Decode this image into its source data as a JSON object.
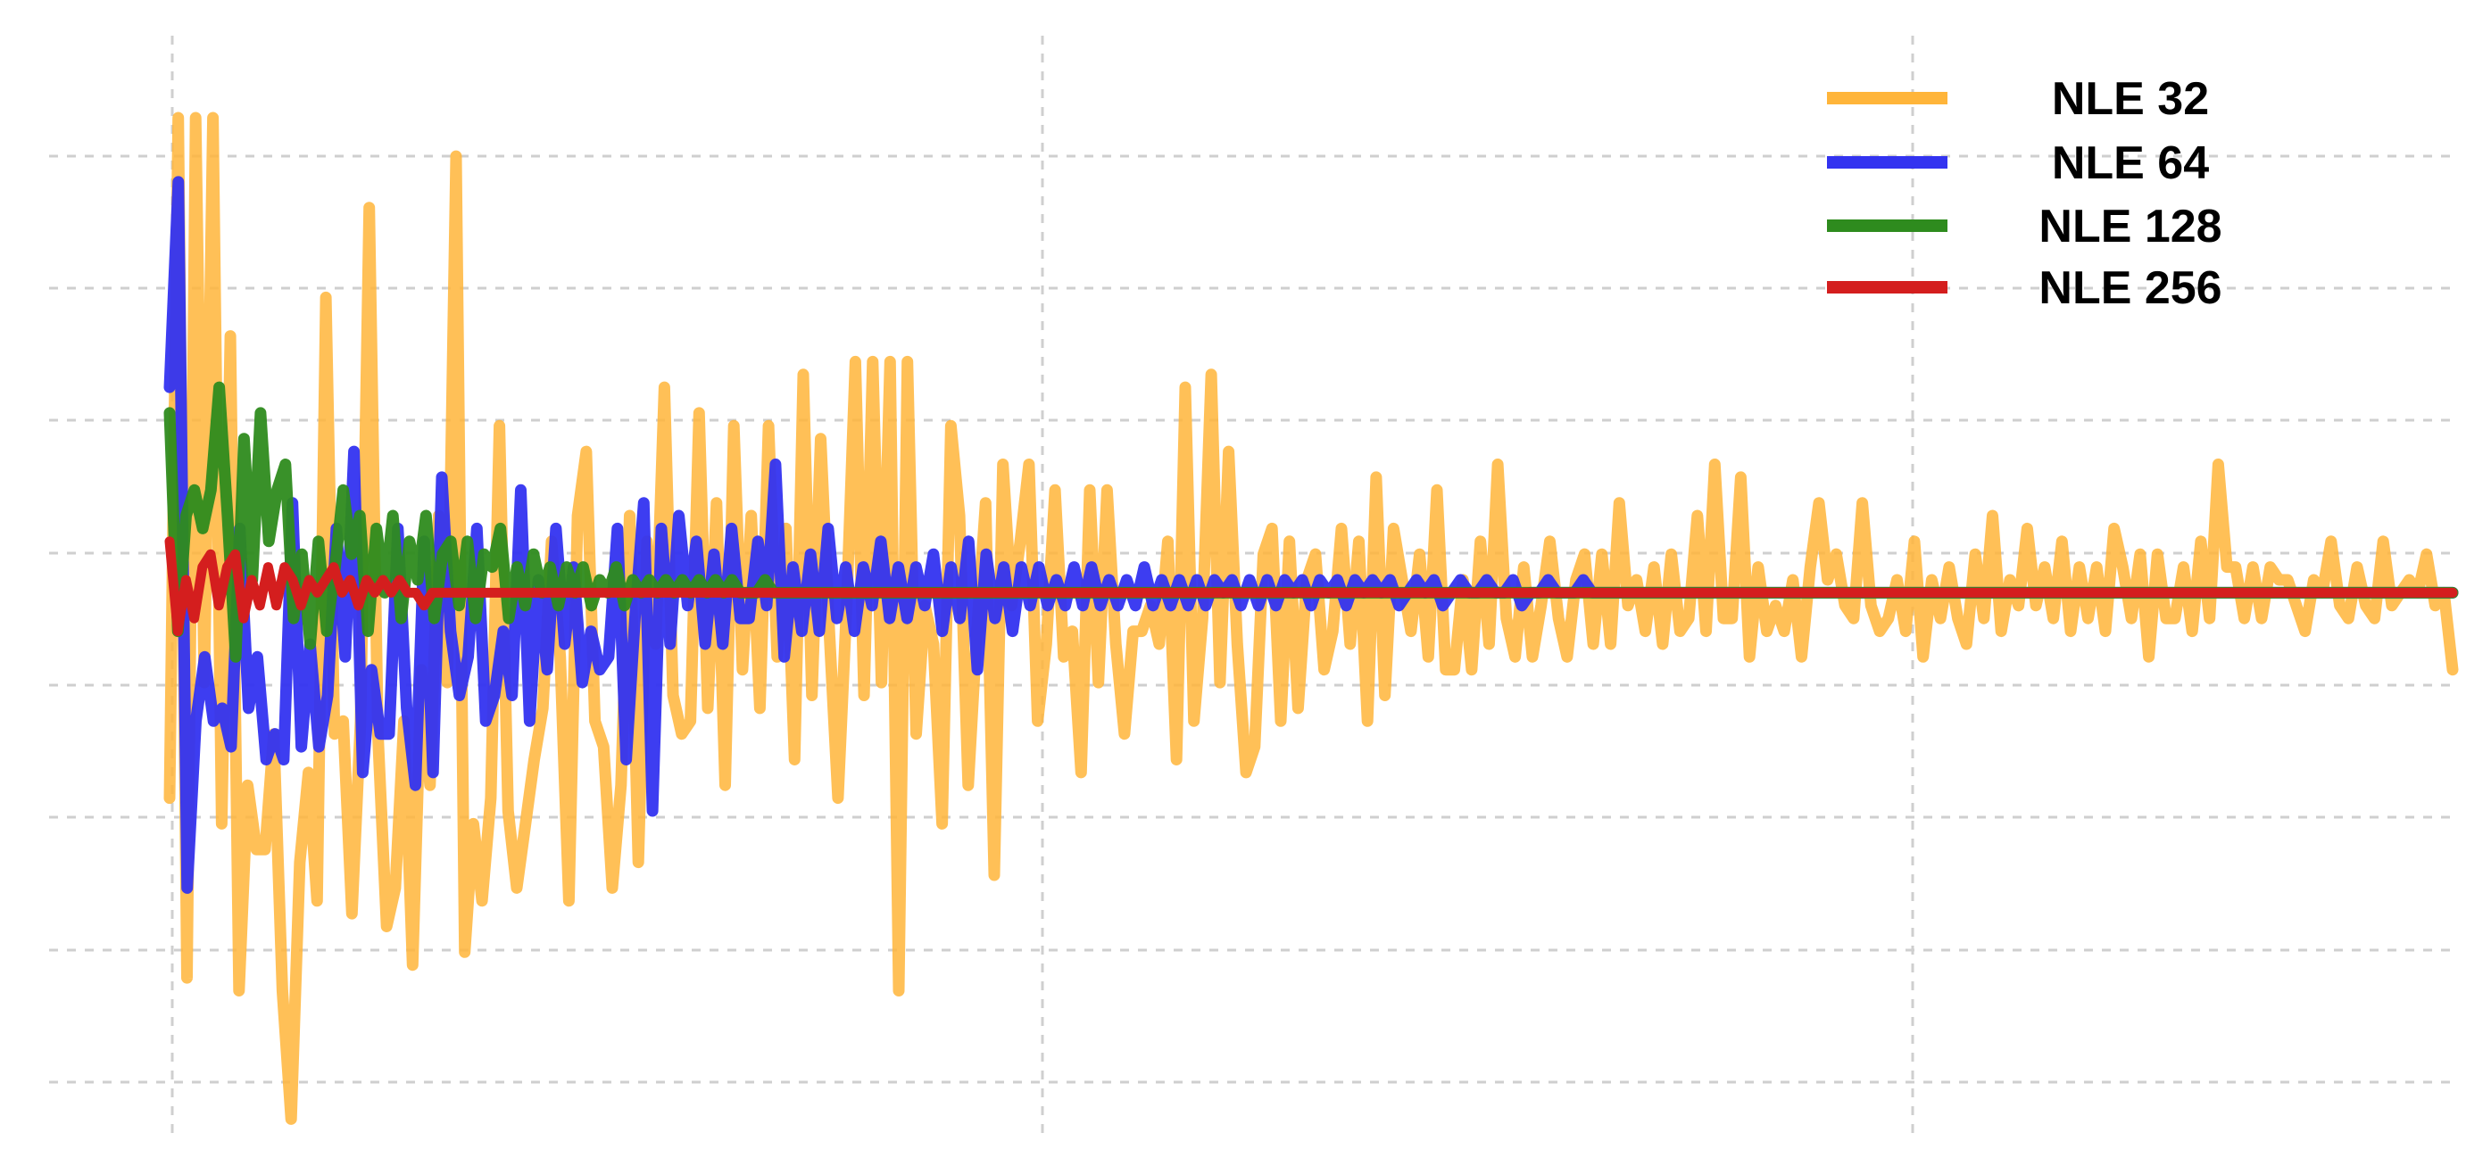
{
  "chart_data": {
    "type": "line",
    "title": "",
    "xlabel": "",
    "ylabel": "",
    "xlim": [
      0,
      262
    ],
    "ylim": [
      -4,
      4.2
    ],
    "grid": true,
    "legend_position": "top-right",
    "series": [
      {
        "name": "NLE 32",
        "color": "#FFB53A",
        "values": [
          -1.6,
          3.7,
          -3.0,
          3.7,
          -0.7,
          3.7,
          -1.8,
          2.0,
          -3.1,
          -1.5,
          -2.0,
          -2.0,
          -1.1,
          -3.1,
          -4.1,
          -2.1,
          -1.4,
          -2.4,
          2.3,
          -1.1,
          -1.0,
          -2.5,
          -1.0,
          3.0,
          -1.1,
          -2.6,
          -2.3,
          -1.0,
          -2.9,
          -0.6,
          -1.5,
          0.6,
          -0.7,
          3.4,
          -2.8,
          -1.8,
          -2.4,
          -1.6,
          1.3,
          -1.7,
          -2.3,
          -1.8,
          -1.3,
          -0.9,
          0.4,
          -0.5,
          -2.4,
          0.6,
          1.1,
          -1.0,
          -1.2,
          -2.3,
          -1.5,
          0.6,
          -2.1,
          0.4,
          -0.4,
          1.6,
          -0.8,
          -1.1,
          -1.0,
          1.4,
          -0.9,
          0.7,
          -1.5,
          1.3,
          -0.6,
          0.6,
          -0.9,
          1.3,
          -0.5,
          0.5,
          -1.3,
          1.7,
          -0.8,
          1.2,
          -0.3,
          -1.6,
          -0.1,
          1.8,
          -0.8,
          1.8,
          -0.7,
          1.8,
          -3.1,
          1.8,
          -1.1,
          -0.1,
          -0.4,
          -1.8,
          1.3,
          0.6,
          -1.5,
          -0.3,
          0.7,
          -2.2,
          1.0,
          -0.1,
          0.4,
          1.0,
          -1.0,
          -0.4,
          0.8,
          -0.5,
          -0.3,
          -1.4,
          0.8,
          -0.7,
          0.8,
          -0.4,
          -1.1,
          -0.3,
          -0.3,
          -0.1,
          -0.4,
          0.4,
          -1.3,
          1.6,
          -1.0,
          -0.2,
          1.7,
          -0.7,
          1.1,
          -0.4,
          -1.4,
          -1.2,
          0.3,
          0.5,
          -1.0,
          0.4,
          -0.9,
          0.1,
          0.3,
          -0.6,
          -0.3,
          0.5,
          -0.4,
          0.4,
          -1.0,
          0.9,
          -0.8,
          0.5,
          0.1,
          -0.3,
          0.3,
          -0.5,
          0.8,
          -0.6,
          -0.6,
          0.1,
          -0.6,
          0.4,
          -0.4,
          1.0,
          -0.2,
          -0.5,
          0.2,
          -0.5,
          -0.1,
          0.4,
          -0.2,
          -0.5,
          0.1,
          0.3,
          -0.4,
          0.3,
          -0.4,
          0.7,
          -0.1,
          0.1,
          -0.3,
          0.2,
          -0.4,
          0.3,
          -0.3,
          -0.2,
          0.6,
          -0.3,
          1.0,
          -0.2,
          -0.2,
          0.9,
          -0.5,
          0.2,
          -0.3,
          -0.1,
          -0.3,
          0.1,
          -0.5,
          0.2,
          0.7,
          0.1,
          0.3,
          -0.1,
          -0.2,
          0.7,
          -0.1,
          -0.3,
          -0.2,
          0.1,
          -0.3,
          0.4,
          -0.5,
          0.1,
          -0.2,
          0.2,
          -0.2,
          -0.4,
          0.3,
          -0.2,
          0.6,
          -0.3,
          0.1,
          -0.1,
          0.5,
          -0.1,
          0.2,
          -0.2,
          0.4,
          -0.3,
          0.2,
          -0.2,
          0.2,
          -0.3,
          0.5,
          0.2,
          -0.2,
          0.3,
          -0.5,
          0.3,
          -0.2,
          -0.2,
          0.2,
          -0.3,
          0.4,
          -0.2,
          1.0,
          0.2,
          0.2,
          -0.2,
          0.2,
          -0.2,
          0.2,
          0.1,
          0.1,
          -0.1,
          -0.3,
          0.1,
          0.0,
          0.4,
          -0.1,
          -0.2,
          0.2,
          -0.1,
          -0.2,
          0.4,
          -0.1,
          0.0,
          0.1,
          0.0,
          0.3,
          -0.1,
          0.0,
          -0.6
        ]
      },
      {
        "name": "NLE 64",
        "color": "#3333F0",
        "values": [
          1.6,
          3.2,
          -2.3,
          -1.0,
          -0.5,
          -1.0,
          -0.9,
          -1.2,
          0.5,
          -0.9,
          -0.5,
          -1.3,
          -1.1,
          -1.3,
          0.7,
          -1.2,
          -0.4,
          -1.2,
          -0.8,
          0.5,
          -0.5,
          1.1,
          -1.4,
          -0.6,
          -1.1,
          -1.1,
          0.5,
          -0.9,
          -1.5,
          0.4,
          -1.4,
          0.9,
          -0.3,
          -0.8,
          -0.5,
          0.5,
          -1.0,
          -0.8,
          -0.3,
          -0.8,
          0.8,
          -1.0,
          0.1,
          -0.6,
          0.5,
          -0.4,
          0.2,
          -0.7,
          -0.3,
          -0.6,
          -0.5,
          0.5,
          -1.3,
          -0.2,
          0.7,
          -1.7,
          0.5,
          -0.4,
          0.6,
          -0.1,
          0.4,
          -0.4,
          0.3,
          -0.4,
          0.5,
          -0.2,
          -0.2,
          0.4,
          -0.1,
          1.0,
          -0.5,
          0.2,
          -0.3,
          0.3,
          -0.3,
          0.5,
          -0.2,
          0.2,
          -0.3,
          0.2,
          -0.1,
          0.4,
          -0.2,
          0.2,
          -0.2,
          0.2,
          -0.1,
          0.3,
          -0.3,
          0.2,
          -0.2,
          0.4,
          -0.6,
          0.3,
          -0.2,
          0.2,
          -0.3,
          0.2,
          -0.1,
          0.2,
          -0.1,
          0.1,
          -0.1,
          0.2,
          -0.1,
          0.2,
          -0.1,
          0.1,
          -0.1,
          0.1,
          -0.1,
          0.2,
          -0.1,
          0.1,
          -0.1,
          0.1,
          -0.1,
          0.1,
          -0.1,
          0.1,
          0.0,
          0.1,
          -0.1,
          0.1,
          -0.1,
          0.1,
          -0.1,
          0.1,
          0.0,
          0.1,
          -0.1,
          0.1,
          0.0,
          0.1,
          -0.1,
          0.1,
          0.0,
          0.1,
          0.0,
          0.1,
          -0.1,
          0.0,
          0.1,
          0.0,
          0.1,
          -0.1,
          0.0,
          0.1,
          0.0,
          0.0,
          0.1,
          0.0,
          0.0,
          0.1,
          -0.1,
          0.0,
          0.0,
          0.1,
          0.0,
          0.0,
          0.0,
          0.1,
          0.0,
          0.0,
          0.0,
          0.0,
          0.0,
          0.0,
          0.0,
          0.0,
          0.0,
          0.0,
          0.0,
          0.0,
          0.0,
          0.0,
          0.0,
          0.0,
          0.0,
          0.0,
          0.0,
          0.0,
          0.0,
          0.0,
          0.0,
          0.0,
          0.0,
          0.0,
          0.0,
          0.0,
          0.0,
          0.0,
          0.0,
          0.0,
          0.0,
          0.0,
          0.0,
          0.0,
          0.0,
          0.0,
          0.0,
          0.0,
          0.0,
          0.0,
          0.0,
          0.0,
          0.0,
          0.0,
          0.0,
          0.0,
          0.0,
          0.0,
          0.0,
          0.0,
          0.0,
          0.0,
          0.0,
          0.0,
          0.0,
          0.0,
          0.0,
          0.0,
          0.0,
          0.0,
          0.0,
          0.0,
          0.0,
          0.0,
          0.0,
          0.0,
          0.0,
          0.0,
          0.0,
          0.0,
          0.0,
          0.0,
          0.0,
          0.0,
          0.0,
          0.0,
          0.0,
          0.0,
          0.0,
          0.0,
          0.0,
          0.0,
          0.0,
          0.0,
          0.0,
          0.0,
          0.0,
          0.0,
          0.0,
          0.0,
          0.0,
          0.0,
          0.0,
          0.0,
          0.0,
          0.0,
          0.0
        ]
      },
      {
        "name": "NLE 128",
        "color": "#2E8B1E",
        "values": [
          1.4,
          -0.3,
          0.6,
          0.8,
          0.5,
          0.8,
          1.6,
          0.6,
          -0.5,
          1.2,
          0.1,
          1.4,
          0.4,
          0.8,
          1.0,
          -0.2,
          0.3,
          -0.4,
          0.4,
          -0.3,
          0.2,
          0.8,
          0.3,
          0.6,
          -0.3,
          0.5,
          0.0,
          0.6,
          -0.2,
          0.4,
          0.1,
          0.6,
          -0.2,
          0.3,
          0.4,
          -0.1,
          0.4,
          -0.2,
          0.3,
          0.2,
          0.5,
          -0.2,
          0.2,
          -0.1,
          0.3,
          0.0,
          0.2,
          -0.1,
          0.2,
          0.0,
          0.2,
          -0.1,
          0.1,
          0.0,
          0.2,
          -0.1,
          0.1,
          0.0,
          0.1,
          0.0,
          0.1,
          0.0,
          0.1,
          0.0,
          0.1,
          0.0,
          0.1,
          0.0,
          0.1,
          0.0,
          0.0,
          0.0,
          0.1,
          0.0,
          0.0,
          0.0,
          0.0,
          0.0,
          0.0,
          0.0,
          0.0,
          0.0,
          0.0,
          0.0,
          0.0,
          0.0,
          0.0,
          0.0,
          0.0,
          0.0,
          0.0,
          0.0,
          0.0,
          0.0,
          0.0,
          0.0,
          0.0,
          0.0,
          0.0,
          0.0,
          0.0,
          0.0,
          0.0,
          0.0,
          0.0,
          0.0,
          0.0,
          0.0,
          0.0,
          0.0,
          0.0,
          0.0,
          0.0,
          0.0,
          0.0,
          0.0,
          0.0,
          0.0,
          0.0,
          0.0,
          0.0,
          0.0,
          0.0,
          0.0,
          0.0,
          0.0,
          0.0,
          0.0,
          0.0,
          0.0,
          0.0,
          0.0,
          0.0,
          0.0,
          0.0,
          0.0,
          0.0,
          0.0,
          0.0,
          0.0,
          0.0,
          0.0,
          0.0,
          0.0,
          0.0,
          0.0,
          0.0,
          0.0,
          0.0,
          0.0,
          0.0,
          0.0,
          0.0,
          0.0,
          0.0,
          0.0,
          0.0,
          0.0,
          0.0,
          0.0,
          0.0,
          0.0,
          0.0,
          0.0,
          0.0,
          0.0,
          0.0,
          0.0,
          0.0,
          0.0,
          0.0,
          0.0,
          0.0,
          0.0,
          0.0,
          0.0,
          0.0,
          0.0,
          0.0,
          0.0,
          0.0,
          0.0,
          0.0,
          0.0,
          0.0,
          0.0,
          0.0,
          0.0,
          0.0,
          0.0,
          0.0,
          0.0,
          0.0,
          0.0,
          0.0,
          0.0,
          0.0,
          0.0,
          0.0,
          0.0,
          0.0,
          0.0,
          0.0,
          0.0,
          0.0,
          0.0,
          0.0,
          0.0,
          0.0,
          0.0,
          0.0,
          0.0,
          0.0,
          0.0,
          0.0,
          0.0,
          0.0,
          0.0,
          0.0,
          0.0,
          0.0,
          0.0,
          0.0,
          0.0,
          0.0,
          0.0,
          0.0,
          0.0,
          0.0,
          0.0,
          0.0,
          0.0,
          0.0,
          0.0,
          0.0,
          0.0,
          0.0,
          0.0,
          0.0,
          0.0,
          0.0,
          0.0,
          0.0,
          0.0,
          0.0,
          0.0,
          0.0,
          0.0,
          0.0,
          0.0,
          0.0,
          0.0,
          0.0,
          0.0,
          0.0,
          0.0,
          0.0,
          0.0,
          0.0,
          0.0,
          0.0,
          0.0,
          0.0,
          0.0,
          0.0,
          0.0,
          0.0,
          0.0,
          0.0,
          0.0,
          0.0,
          0.0,
          0.0,
          0.0,
          0.0,
          0.0,
          0.0
        ]
      },
      {
        "name": "NLE 256",
        "color": "#D41E1E",
        "values": [
          0.4,
          -0.3,
          0.1,
          -0.2,
          0.2,
          0.3,
          -0.1,
          0.2,
          0.3,
          -0.2,
          0.1,
          -0.1,
          0.2,
          -0.1,
          0.2,
          0.1,
          -0.1,
          0.1,
          0.0,
          0.1,
          0.2,
          0.0,
          0.1,
          -0.1,
          0.1,
          0.0,
          0.1,
          0.0,
          0.1,
          0.0,
          0.0,
          -0.1,
          0.0,
          0.0,
          0.0,
          0.0,
          0.0,
          0.0,
          0.0,
          0.0,
          0.0,
          0.0,
          0.0,
          0.0,
          0.0,
          0.0,
          0.0,
          0.0,
          0.0,
          0.0,
          0.0,
          0.0,
          0.0,
          0.0,
          0.0,
          0.0,
          0.0,
          0.0,
          0.0,
          0.0,
          0.0,
          0.0,
          0.0,
          0.0,
          0.0,
          0.0,
          0.0,
          0.0,
          0.0,
          0.0,
          0.0,
          0.0,
          0.0,
          0.0,
          0.0,
          0.0,
          0.0,
          0.0,
          0.0,
          0.0,
          0.0,
          0.0,
          0.0,
          0.0,
          0.0,
          0.0,
          0.0,
          0.0,
          0.0,
          0.0,
          0.0,
          0.0,
          0.0,
          0.0,
          0.0,
          0.0,
          0.0,
          0.0,
          0.0,
          0.0,
          0.0,
          0.0,
          0.0,
          0.0,
          0.0,
          0.0,
          0.0,
          0.0,
          0.0,
          0.0,
          0.0,
          0.0,
          0.0,
          0.0,
          0.0,
          0.0,
          0.0,
          0.0,
          0.0,
          0.0,
          0.0,
          0.0,
          0.0,
          0.0,
          0.0,
          0.0,
          0.0,
          0.0,
          0.0,
          0.0,
          0.0,
          0.0,
          0.0,
          0.0,
          0.0,
          0.0,
          0.0,
          0.0,
          0.0,
          0.0,
          0.0,
          0.0,
          0.0,
          0.0,
          0.0,
          0.0,
          0.0,
          0.0,
          0.0,
          0.0,
          0.0,
          0.0,
          0.0,
          0.0,
          0.0,
          0.0,
          0.0,
          0.0,
          0.0,
          0.0,
          0.0,
          0.0,
          0.0,
          0.0,
          0.0,
          0.0,
          0.0,
          0.0,
          0.0,
          0.0,
          0.0,
          0.0,
          0.0,
          0.0,
          0.0,
          0.0,
          0.0,
          0.0,
          0.0,
          0.0,
          0.0,
          0.0,
          0.0,
          0.0,
          0.0,
          0.0,
          0.0,
          0.0,
          0.0,
          0.0,
          0.0,
          0.0,
          0.0,
          0.0,
          0.0,
          0.0,
          0.0,
          0.0,
          0.0,
          0.0,
          0.0,
          0.0,
          0.0,
          0.0,
          0.0,
          0.0,
          0.0,
          0.0,
          0.0,
          0.0,
          0.0,
          0.0,
          0.0,
          0.0,
          0.0,
          0.0,
          0.0,
          0.0,
          0.0,
          0.0,
          0.0,
          0.0,
          0.0,
          0.0,
          0.0,
          0.0,
          0.0,
          0.0,
          0.0,
          0.0,
          0.0,
          0.0,
          0.0,
          0.0,
          0.0,
          0.0,
          0.0,
          0.0,
          0.0,
          0.0,
          0.0,
          0.0,
          0.0,
          0.0,
          0.0,
          0.0,
          0.0,
          0.0,
          0.0,
          0.0,
          0.0,
          0.0,
          0.0,
          0.0,
          0.0,
          0.0,
          0.0,
          0.0,
          0.0,
          0.0,
          0.0,
          0.0,
          0.0,
          0.0,
          0.0,
          0.0,
          0.0,
          0.0,
          0.0,
          0.0,
          0.0,
          0.0,
          0.0,
          0.0,
          0.0,
          0.0,
          0.0,
          0.0,
          0.0
        ]
      }
    ]
  }
}
